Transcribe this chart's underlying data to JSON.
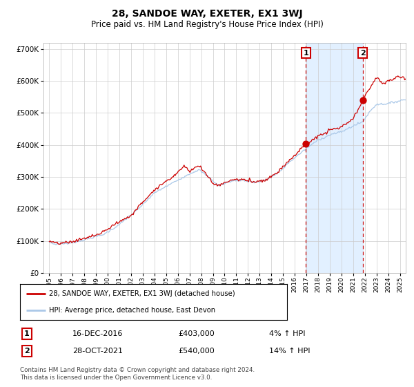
{
  "title": "28, SANDOE WAY, EXETER, EX1 3WJ",
  "subtitle": "Price paid vs. HM Land Registry's House Price Index (HPI)",
  "legend_line1": "28, SANDOE WAY, EXETER, EX1 3WJ (detached house)",
  "legend_line2": "HPI: Average price, detached house, East Devon",
  "sale1_date": "16-DEC-2016",
  "sale1_price": 403000,
  "sale1_label": "4% ↑ HPI",
  "sale2_date": "28-OCT-2021",
  "sale2_price": 540000,
  "sale2_label": "14% ↑ HPI",
  "footer": "Contains HM Land Registry data © Crown copyright and database right 2024.\nThis data is licensed under the Open Government Licence v3.0.",
  "sale1_year": 2016.96,
  "sale2_year": 2021.82,
  "hpi_color": "#aac8e8",
  "price_color": "#cc0000",
  "marker_color": "#cc0000",
  "bg_shaded_color": "#ddeeff",
  "vline_color": "#cc0000",
  "grid_color": "#cccccc",
  "background_color": "#ffffff",
  "ylim": [
    0,
    720000
  ],
  "xlim_start": 1994.5,
  "xlim_end": 2025.5
}
